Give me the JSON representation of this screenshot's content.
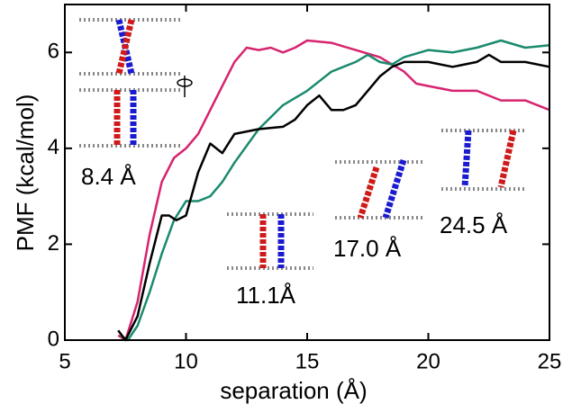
{
  "chart_data": {
    "type": "line",
    "xlabel": "separation (Å)",
    "ylabel": "PMF (kcal/mol)",
    "xlim": [
      5,
      25
    ],
    "xticks": [
      5,
      10,
      15,
      20,
      25
    ],
    "ylim": [
      0,
      7
    ],
    "yticks": [
      0,
      2,
      4,
      6
    ],
    "annotations": [
      "8.4 Å",
      "11.1Å",
      "17.0 Å",
      "24.5 Å"
    ],
    "series": [
      {
        "color": "#d6246e",
        "x": [
          7.2,
          7.5,
          8,
          8.5,
          9,
          9.5,
          10,
          10.5,
          11,
          11.5,
          12,
          12.5,
          13,
          13.5,
          14,
          14.5,
          15,
          16,
          17,
          18,
          19,
          19.5,
          20,
          21,
          22,
          23,
          24,
          25
        ],
        "values": [
          0.1,
          0,
          0.8,
          2.2,
          3.3,
          3.8,
          4.0,
          4.3,
          4.8,
          5.3,
          5.8,
          6.1,
          6.05,
          6.1,
          6.0,
          6.1,
          6.25,
          6.2,
          6.05,
          5.9,
          5.6,
          5.35,
          5.3,
          5.2,
          5.2,
          5.0,
          5.0,
          4.8
        ]
      },
      {
        "color": "#1a8a6e",
        "x": [
          7.3,
          7.6,
          8,
          8.5,
          9,
          9.5,
          10,
          10.5,
          11,
          11.5,
          12,
          13,
          14,
          15,
          15.5,
          16,
          17,
          17.5,
          18,
          18.5,
          19,
          20,
          21,
          22,
          23,
          24,
          25
        ],
        "values": [
          0.1,
          0,
          0.3,
          1.0,
          1.8,
          2.5,
          2.9,
          2.9,
          3.0,
          3.3,
          3.7,
          4.4,
          4.9,
          5.2,
          5.4,
          5.6,
          5.8,
          5.95,
          5.8,
          5.75,
          5.9,
          6.05,
          6.0,
          6.1,
          6.25,
          6.1,
          6.15
        ]
      },
      {
        "color": "#000000",
        "x": [
          7.2,
          7.5,
          8,
          8.5,
          9,
          9.3,
          9.6,
          10,
          10.5,
          11,
          11.5,
          12,
          13,
          14,
          14.5,
          15,
          15.5,
          16,
          16.5,
          17,
          17.5,
          18,
          18.5,
          19,
          20,
          21,
          22,
          22.5,
          23,
          24,
          25
        ],
        "values": [
          0.2,
          0,
          0.5,
          1.6,
          2.6,
          2.6,
          2.5,
          2.6,
          3.5,
          4.1,
          3.9,
          4.3,
          4.4,
          4.45,
          4.6,
          4.9,
          5.1,
          4.8,
          4.8,
          4.9,
          5.2,
          5.5,
          5.7,
          5.8,
          5.8,
          5.7,
          5.8,
          5.95,
          5.8,
          5.8,
          5.7
        ]
      }
    ]
  }
}
